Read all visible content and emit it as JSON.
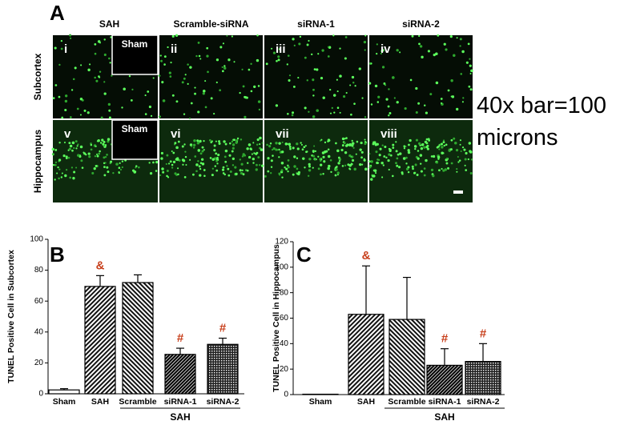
{
  "panel_a": {
    "label": "A",
    "columns": [
      "SAH",
      "Scramble-siRNA",
      "siRNA-1",
      "siRNA-2"
    ],
    "rows": [
      "Subcortex",
      "Hippocampus"
    ],
    "panels": [
      "i",
      "ii",
      "iii",
      "iv",
      "v",
      "vi",
      "vii",
      "viii"
    ],
    "insets": [
      "Sham",
      "Sham"
    ],
    "scale_note": "40x bar=100 microns"
  },
  "chart_data": [
    {
      "type": "bar",
      "label": "B",
      "y_label": "TUNEL Positive Cell in Subcortex",
      "categories": [
        "Sham",
        "SAH",
        "Scramble",
        "siRNA-1",
        "siRNA-2"
      ],
      "values": [
        2.5,
        69.5,
        72,
        25.5,
        32
      ],
      "errors": [
        0.8,
        7,
        5,
        4,
        4
      ],
      "markers": [
        null,
        "&",
        null,
        "#",
        "#"
      ],
      "marker_color": "#c8401c",
      "patterns": [
        "none",
        "hatch-right",
        "hatch-left",
        "dense",
        "dots"
      ],
      "group_label": "SAH",
      "ylim": [
        0,
        100
      ],
      "yticks": [
        0,
        20,
        40,
        60,
        80,
        100
      ]
    },
    {
      "type": "bar",
      "label": "C",
      "y_label": "TUNEL Positive Cell in Hippocampus",
      "categories": [
        "Sham",
        "SAH",
        "Scramble",
        "siRNA-1",
        "siRNA-2"
      ],
      "values": [
        0.3,
        63,
        59,
        23,
        26
      ],
      "errors": [
        0,
        38,
        33,
        13,
        14
      ],
      "markers": [
        null,
        "&",
        null,
        "#",
        "#"
      ],
      "marker_color": "#c8401c",
      "patterns": [
        "none",
        "hatch-right",
        "hatch-left",
        "dense",
        "dots"
      ],
      "group_label": "SAH",
      "ylim": [
        0,
        120
      ],
      "yticks": [
        0,
        20,
        40,
        60,
        80,
        100,
        120
      ]
    }
  ]
}
